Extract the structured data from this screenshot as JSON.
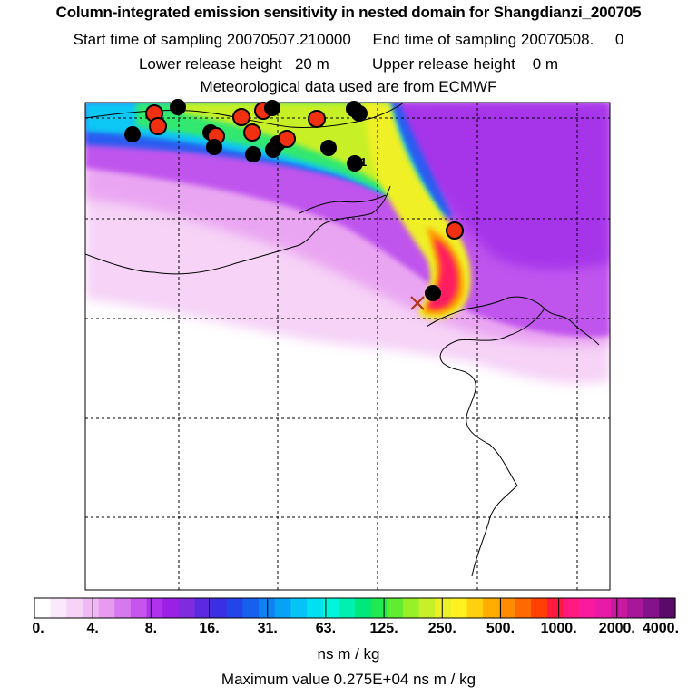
{
  "header": {
    "title": "Column-integrated emission sensitivity in nested domain for Shangdianzi_200705",
    "line1_left": "Start time of sampling 20070507.210000",
    "line1_right": "End time of sampling 20070508.     0",
    "line2_left": "Lower release height   20 m",
    "line2_right": "Upper release height    0 m",
    "line3": "Meteorological data used are from ECMWF"
  },
  "colorbar": {
    "tick_labels": [
      "0.",
      "4.",
      "8.",
      "16.",
      "31.",
      "63.",
      "125.",
      "250.",
      "500.",
      "1000.",
      "2000.",
      "4000."
    ],
    "colors": [
      "#ffffff",
      "#fbe9fb",
      "#f6d3f7",
      "#f0b8f4",
      "#e79af0",
      "#d779ee",
      "#c655ee",
      "#b132ec",
      "#9b20e6",
      "#7f2ce0",
      "#5b2ae0",
      "#3a2fe2",
      "#2244e8",
      "#1660ee",
      "#0d82f2",
      "#08a2f4",
      "#05c4f5",
      "#00e0f0",
      "#00f5da",
      "#00f0b0",
      "#00e87c",
      "#20e850",
      "#60ec30",
      "#98f028",
      "#c8f028",
      "#ecf028",
      "#fff020",
      "#ffd010",
      "#ffae00",
      "#ff8c00",
      "#ff6a00",
      "#ff4000",
      "#ff1a40",
      "#ff1a80",
      "#fa1aa0",
      "#e81aa8",
      "#c81aa0",
      "#a8169a",
      "#84128a",
      "#5a0a68"
    ],
    "units": "ns m / kg"
  },
  "max_value_text": "Maximum value  0.275E+04 ns m / kg",
  "release_site_marker": "1",
  "map_layers": [
    "coastline",
    "country-borders",
    "graticule"
  ]
}
